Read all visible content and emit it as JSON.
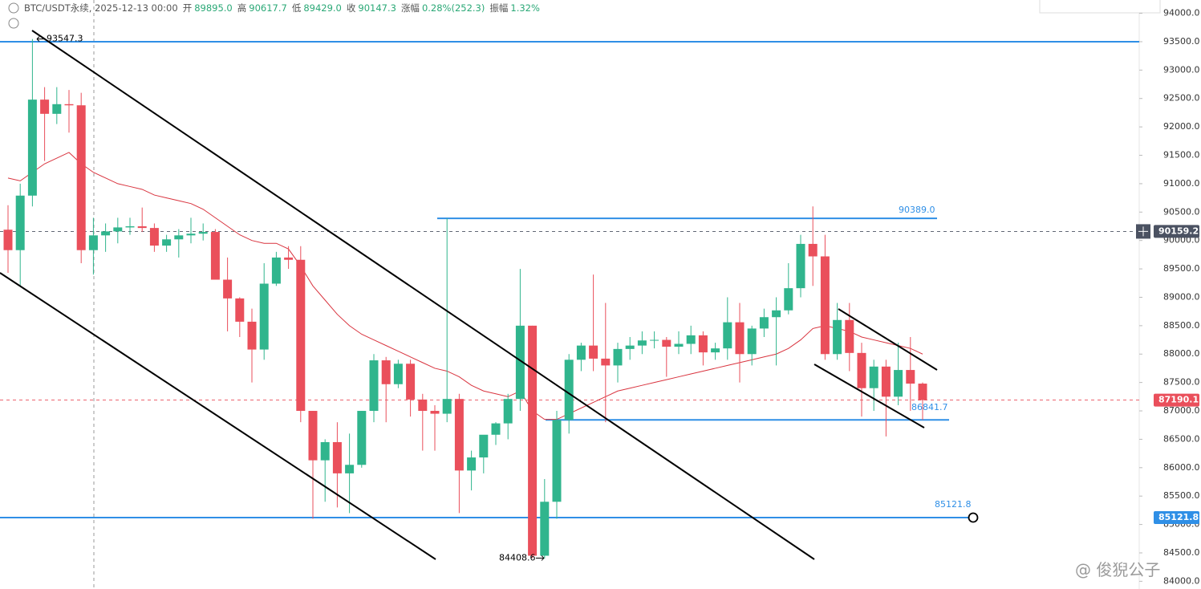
{
  "chart_data": {
    "type": "candlestick",
    "header": {
      "symbol": "BTC/USDT永续, 2025-12-13 00:00",
      "fields": [
        {
          "label": "开",
          "value": "89895.0"
        },
        {
          "label": "高",
          "value": "90617.7"
        },
        {
          "label": "低",
          "value": "89429.0"
        },
        {
          "label": "收",
          "value": "90147.3"
        },
        {
          "label": "涨幅",
          "value": "0.28%(252.3)"
        },
        {
          "label": "振幅",
          "value": "1.32%"
        }
      ]
    },
    "watermark": "@ 俊猊公子",
    "up_color": "#30b58d",
    "down_color": "#ea4f5b",
    "open": [
      90190,
      89830,
      90790,
      92480,
      92230,
      92400,
      92380,
      89830,
      90090,
      90160,
      90230,
      90250,
      90220,
      89910,
      90020,
      90090,
      90120,
      90150,
      89310,
      88980,
      88570,
      88080,
      89240,
      89700,
      89660,
      87000,
      86130,
      86450,
      85900,
      86050,
      87000,
      87890,
      87470,
      87830,
      87200,
      87000,
      86950,
      87210,
      85950,
      86180,
      86580,
      86780,
      87210,
      88500,
      84450,
      85400,
      86840,
      87900,
      88150,
      87920,
      87800,
      88090,
      88150,
      88240,
      88250,
      88130,
      88180,
      88330,
      88030,
      88100,
      88560,
      88000,
      88450,
      88650,
      88770,
      89160,
      89940,
      89720,
      88000,
      88600,
      88020,
      87400,
      87780,
      87250,
      87720,
      87480
    ],
    "high": [
      90620,
      91000,
      93547.3,
      92700,
      92700,
      92650,
      92600,
      90400,
      90300,
      90400,
      90400,
      90580,
      90300,
      90100,
      90200,
      90400,
      90300,
      90200,
      89700,
      89000,
      88800,
      89600,
      89800,
      89900,
      89900,
      87000,
      86500,
      86800,
      86600,
      87000,
      88000,
      87950,
      87900,
      87900,
      87300,
      87100,
      90389,
      87300,
      86300,
      86500,
      86800,
      87300,
      89500,
      88500,
      85800,
      87000,
      88000,
      88200,
      89400,
      88900,
      88200,
      88300,
      88400,
      88400,
      88300,
      88400,
      88500,
      88400,
      88200,
      89000,
      88900,
      88500,
      88800,
      89000,
      89600,
      90100,
      90600,
      90100,
      88900,
      88900,
      88200,
      87900,
      87900,
      88200,
      88300,
      87500
    ],
    "low": [
      89430,
      89200,
      90600,
      91400,
      92050,
      91900,
      89600,
      89400,
      89800,
      89950,
      90100,
      90150,
      89800,
      89800,
      89700,
      89950,
      90000,
      89400,
      88400,
      88300,
      87500,
      87900,
      89200,
      89500,
      86800,
      85100,
      85400,
      85300,
      85200,
      86000,
      86800,
      86800,
      87400,
      86900,
      86300,
      86300,
      86800,
      85200,
      85600,
      85900,
      86400,
      86500,
      87000,
      84408.6,
      84400,
      85100,
      86600,
      87700,
      87700,
      86800,
      87500,
      87900,
      88000,
      88100,
      87600,
      88000,
      88000,
      87800,
      87900,
      87900,
      87500,
      87800,
      88300,
      87800,
      88700,
      89000,
      89200,
      87900,
      87900,
      87700,
      86900,
      87000,
      86550,
      87100,
      87000,
      86841.7
    ],
    "close": [
      89830,
      90790,
      92480,
      92230,
      92400,
      92380,
      89830,
      90090,
      90160,
      90230,
      90250,
      90220,
      89910,
      90020,
      90090,
      90120,
      90150,
      89310,
      88980,
      88570,
      88080,
      89240,
      89700,
      89660,
      87000,
      86130,
      86450,
      85900,
      86050,
      87000,
      87890,
      87470,
      87830,
      87200,
      87000,
      86950,
      87210,
      85950,
      86180,
      86580,
      86780,
      87210,
      88500,
      84450,
      85400,
      86840,
      87900,
      88150,
      87920,
      87800,
      88090,
      88150,
      88240,
      88250,
      88130,
      88180,
      88330,
      88030,
      88100,
      88560,
      88000,
      88450,
      88650,
      88770,
      89160,
      89940,
      89720,
      88000,
      88600,
      88020,
      87400,
      87780,
      87250,
      87720,
      87480,
      87190.1
    ],
    "ma": {
      "color": "#d9343f",
      "values": [
        91100,
        91050,
        91200,
        91350,
        91450,
        91550,
        91350,
        91200,
        91100,
        91000,
        90950,
        90900,
        90800,
        90750,
        90700,
        90650,
        90550,
        90400,
        90250,
        90100,
        90000,
        89950,
        89950,
        89850,
        89550,
        89200,
        88950,
        88700,
        88500,
        88350,
        88250,
        88150,
        88050,
        87950,
        87850,
        87750,
        87700,
        87600,
        87450,
        87350,
        87300,
        87250,
        87350,
        87000,
        86850,
        86850,
        86950,
        87050,
        87150,
        87250,
        87350,
        87400,
        87450,
        87500,
        87550,
        87600,
        87650,
        87700,
        87750,
        87800,
        87850,
        87900,
        87950,
        88000,
        88100,
        88250,
        88450,
        88500,
        88450,
        88400,
        88300,
        88250,
        88200,
        88150,
        88100,
        88000
      ]
    },
    "ylim": [
      83864,
      94234
    ],
    "yticks": [
      {
        "value": 84000,
        "label": "84000.0"
      },
      {
        "value": 84500,
        "label": "84500.0"
      },
      {
        "value": 85000,
        "label": "85000.0"
      },
      {
        "value": 85500,
        "label": "85500.0"
      },
      {
        "value": 86000,
        "label": "86000.0"
      },
      {
        "value": 86500,
        "label": "86500.0"
      },
      {
        "value": 87000,
        "label": "87000.0"
      },
      {
        "value": 87500,
        "label": "87500.0"
      },
      {
        "value": 88000,
        "label": "88000.0"
      },
      {
        "value": 88500,
        "label": "88500.0"
      },
      {
        "value": 89000,
        "label": "89000.0"
      },
      {
        "value": 89500,
        "label": "89500.0"
      },
      {
        "value": 90000,
        "label": "90000.0"
      },
      {
        "value": 90500,
        "label": "90500.0"
      },
      {
        "value": 91000,
        "label": "91000.0"
      },
      {
        "value": 91500,
        "label": "91500.0"
      },
      {
        "value": 92000,
        "label": "92000.0"
      },
      {
        "value": 92500,
        "label": "92500.0"
      },
      {
        "value": 93000,
        "label": "93000.0"
      },
      {
        "value": 93500,
        "label": "93500.0"
      },
      {
        "value": 94000,
        "label": "94000.0"
      }
    ],
    "levels": [
      {
        "value": 93500,
        "color": "#2f8fe6"
      },
      {
        "value": {
          "value": 90389,
          "label": "90389.0"
        },
        "color": "#2f8fe6"
      },
      {
        "value": 86841.7,
        "color": "#2f8fe6"
      },
      {
        "value": 85121.8,
        "color": "#2f8fe6"
      }
    ],
    "price_tags": [
      {
        "value": 90159.2,
        "color": "#4b5262"
      },
      {
        "value": 87190.1,
        "color": "#ea4f5b"
      },
      {
        "value": 85121.8,
        "color": "#2f8fe6"
      }
    ],
    "annotations": [
      {
        "value": 93547.3
      },
      {
        "value": 84408.6
      }
    ]
  }
}
